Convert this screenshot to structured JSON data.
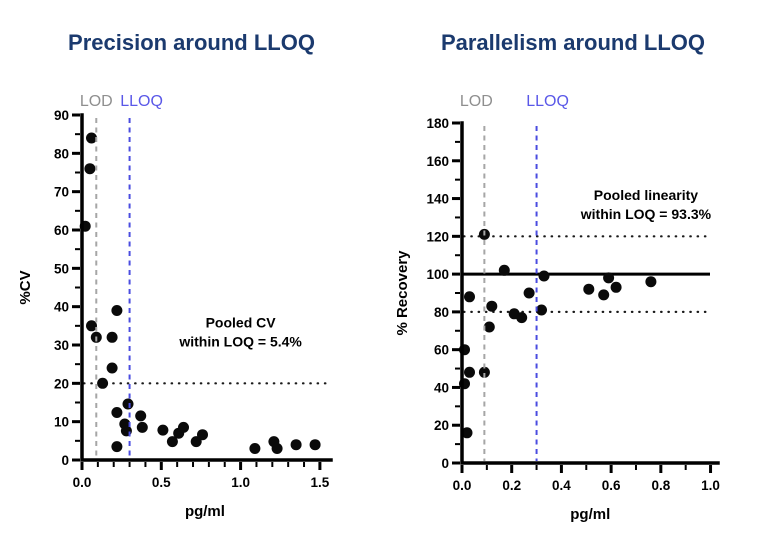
{
  "colors": {
    "title": "#1b3a6e",
    "lod_label": "#8f8f8f",
    "lod_line": "#a6a6a6",
    "lloq_label": "#5a58e8",
    "lloq_line": "#4a4ce0",
    "point": "#0a0a0a",
    "axis": "#000000",
    "reference_line": "#1a1a1a",
    "annotation": "#000000"
  },
  "chart_data": [
    {
      "type": "scatter",
      "title": "Precision around LLOQ",
      "xlabel": "pg/ml",
      "ylabel": "%CV",
      "xlim": [
        0,
        1.57
      ],
      "ylim": [
        0,
        90
      ],
      "xticks": [
        0,
        0.5,
        1.0,
        1.5
      ],
      "x_minor_step": 0.1,
      "ytick_step": 10,
      "y_minor_step": 5,
      "grid": "off",
      "lod": {
        "label": "LOD",
        "x": 0.09
      },
      "lloq": {
        "label": "LLOQ",
        "x": 0.3
      },
      "dotted_hlines": [
        20
      ],
      "solid_hlines": [],
      "annotation": {
        "lines": [
          "Pooled CV",
          "within LOQ = 5.4%"
        ],
        "x": 1.0,
        "y": 33
      },
      "points": [
        [
          0.06,
          84
        ],
        [
          0.05,
          76
        ],
        [
          0.02,
          61
        ],
        [
          0.06,
          35
        ],
        [
          0.09,
          32
        ],
        [
          0.19,
          32
        ],
        [
          0.22,
          39
        ],
        [
          0.19,
          24
        ],
        [
          0.13,
          20
        ],
        [
          0.29,
          14.6
        ],
        [
          0.22,
          12.4
        ],
        [
          0.27,
          9.4
        ],
        [
          0.28,
          7.6
        ],
        [
          0.37,
          11.5
        ],
        [
          0.38,
          8.5
        ],
        [
          0.22,
          3.5
        ],
        [
          0.51,
          7.8
        ],
        [
          0.57,
          4.8
        ],
        [
          0.61,
          7
        ],
        [
          0.64,
          8.5
        ],
        [
          0.72,
          4.8
        ],
        [
          0.76,
          6.6
        ],
        [
          1.09,
          3
        ],
        [
          1.21,
          4.8
        ],
        [
          1.23,
          3
        ],
        [
          1.35,
          4
        ],
        [
          1.47,
          4
        ]
      ]
    },
    {
      "type": "scatter",
      "title": "Parallelism around LLOQ",
      "xlabel": "pg/ml",
      "ylabel": "% Recovery",
      "xlim": [
        0,
        1.03
      ],
      "ylim": [
        0,
        180
      ],
      "xticks": [
        0,
        0.2,
        0.4,
        0.6,
        0.8,
        1.0
      ],
      "x_minor_step": 0.1,
      "ytick_step": 20,
      "y_minor_step": 10,
      "grid": "off",
      "lod": {
        "label": "LOD",
        "x": 0.09
      },
      "lloq": {
        "label": "LLOQ",
        "x": 0.3
      },
      "dotted_hlines": [
        80,
        120
      ],
      "solid_hlines": [
        100
      ],
      "annotation": {
        "lines": [
          "Pooled linearity",
          "within LOQ = 93.3%"
        ],
        "x": 0.74,
        "y": 136
      },
      "points": [
        [
          0.02,
          16
        ],
        [
          0.01,
          42
        ],
        [
          0.03,
          48
        ],
        [
          0.09,
          48
        ],
        [
          0.01,
          60
        ],
        [
          0.03,
          88
        ],
        [
          0.09,
          121
        ],
        [
          0.11,
          72
        ],
        [
          0.12,
          83
        ],
        [
          0.17,
          102
        ],
        [
          0.21,
          79
        ],
        [
          0.24,
          77
        ],
        [
          0.27,
          90
        ],
        [
          0.32,
          81
        ],
        [
          0.33,
          99
        ],
        [
          0.51,
          92
        ],
        [
          0.57,
          89
        ],
        [
          0.59,
          98
        ],
        [
          0.62,
          93
        ],
        [
          0.76,
          96
        ]
      ]
    }
  ]
}
